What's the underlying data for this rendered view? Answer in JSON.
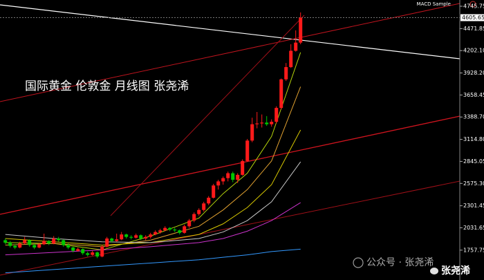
{
  "chart_data": {
    "type": "candlestick",
    "title": "国际黄金 伦敦金 月线图 张尧浠",
    "indicator": "MACD Sample",
    "watermark": {
      "account": "公众号 · 张尧浠",
      "author": "张尧浠"
    },
    "up_color": "#ff1a1a",
    "down_color": "#00c800",
    "xlim": [
      -1.1,
      93.9
    ],
    "ylim": [
      1392,
      4822
    ],
    "yticks": [
      4745.75,
      4471.85,
      {
        "value": 4202.1,
        "label": "4202.10"
      },
      {
        "value": 3928.2,
        "label": "3928.20"
      },
      3658.45,
      {
        "value": 3388.7,
        "label": "3388.70"
      },
      {
        "value": 3114.8,
        "label": "3114.80"
      },
      2845.05,
      {
        "value": 2575.3,
        "label": "2575.30"
      },
      2301.45,
      2031.65,
      1757.75
    ],
    "last_price": 4605.65,
    "open": [
      1880,
      1850,
      1810,
      1790,
      1840,
      1880,
      1820,
      1790,
      1830,
      1870,
      1840,
      1900,
      1880,
      1820,
      1790,
      1750,
      1770,
      1720,
      1700,
      1730,
      1680,
      1800,
      1900,
      1870,
      1890,
      1950,
      1920,
      1910,
      1940,
      1900,
      1920,
      1950,
      1980,
      2000,
      2030,
      2010,
      2000,
      1970,
      2050,
      2120,
      2200,
      2250,
      2330,
      2400,
      2550,
      2600,
      2640,
      2700,
      2620,
      2680,
      2850,
      3100,
      3300,
      3310,
      3320,
      3300,
      3330,
      3500,
      3850,
      4000,
      4200,
      4300
    ],
    "high": [
      1900,
      1870,
      1830,
      1860,
      1920,
      1890,
      1840,
      1850,
      1960,
      1880,
      1930,
      1920,
      1890,
      1840,
      1800,
      1790,
      1780,
      1740,
      1750,
      1740,
      1820,
      1920,
      1910,
      1960,
      1980,
      1960,
      1940,
      1960,
      1950,
      1940,
      1970,
      2000,
      2020,
      2050,
      2040,
      2030,
      2010,
      2070,
      2140,
      2220,
      2270,
      2350,
      2420,
      2570,
      2620,
      2660,
      2720,
      2720,
      2700,
      2870,
      3120,
      3380,
      3450,
      3420,
      3400,
      3360,
      3520,
      3860,
      4050,
      4280,
      4450,
      4670
    ],
    "low": [
      1830,
      1790,
      1770,
      1780,
      1830,
      1800,
      1770,
      1780,
      1820,
      1820,
      1830,
      1860,
      1800,
      1770,
      1730,
      1740,
      1700,
      1680,
      1690,
      1660,
      1670,
      1790,
      1850,
      1860,
      1880,
      1900,
      1890,
      1900,
      1880,
      1880,
      1900,
      1940,
      1960,
      1990,
      1990,
      1980,
      1950,
      1960,
      2030,
      2100,
      2180,
      2230,
      2310,
      2390,
      2500,
      2560,
      2600,
      2590,
      2580,
      2670,
      2840,
      3080,
      3250,
      3260,
      3280,
      3270,
      3310,
      3480,
      3830,
      3990,
      4190,
      4280
    ],
    "close": [
      1850,
      1810,
      1790,
      1840,
      1880,
      1820,
      1790,
      1830,
      1870,
      1840,
      1900,
      1880,
      1820,
      1790,
      1750,
      1770,
      1720,
      1700,
      1730,
      1680,
      1800,
      1900,
      1870,
      1890,
      1950,
      1920,
      1910,
      1940,
      1900,
      1920,
      1950,
      1980,
      2000,
      2030,
      2010,
      2000,
      1970,
      2050,
      2120,
      2200,
      2250,
      2330,
      2400,
      2550,
      2600,
      2640,
      2700,
      2620,
      2680,
      2850,
      3100,
      3300,
      3310,
      3320,
      3300,
      3330,
      3500,
      3850,
      4000,
      4200,
      4300,
      4605.65
    ],
    "series": [
      {
        "color": "#b5d30b",
        "x": [
          0,
          10,
          20,
          30,
          40,
          45,
          50,
          55,
          61
        ],
        "values": [
          1850,
          1840,
          1760,
          1930,
          2150,
          2450,
          2700,
          3150,
          4180
        ]
      },
      {
        "color": "#e0a030",
        "x": [
          0,
          10,
          20,
          30,
          40,
          45,
          50,
          55,
          61
        ],
        "values": [
          1820,
          1840,
          1800,
          1880,
          2050,
          2250,
          2500,
          2850,
          3760
        ]
      },
      {
        "color": "#d8c800",
        "x": [
          0,
          10,
          20,
          30,
          40,
          45,
          50,
          55,
          61
        ],
        "values": [
          1900,
          1860,
          1820,
          1850,
          1950,
          2080,
          2280,
          2560,
          3230
        ]
      },
      {
        "color": "#c8c8c8",
        "x": [
          0,
          10,
          20,
          30,
          40,
          45,
          50,
          55,
          61
        ],
        "values": [
          1950,
          1900,
          1860,
          1850,
          1900,
          1980,
          2120,
          2350,
          2840
        ]
      },
      {
        "color": "#cc33cc",
        "x": [
          0,
          10,
          20,
          30,
          40,
          45,
          50,
          55,
          61
        ],
        "values": [
          1700,
          1730,
          1760,
          1800,
          1850,
          1900,
          1990,
          2120,
          2340
        ]
      },
      {
        "color": "#3399ff",
        "x": [
          0,
          10,
          20,
          30,
          40,
          45,
          50,
          55,
          61
        ],
        "values": [
          1480,
          1520,
          1560,
          1600,
          1640,
          1670,
          1700,
          1740,
          1770
        ]
      }
    ]
  }
}
